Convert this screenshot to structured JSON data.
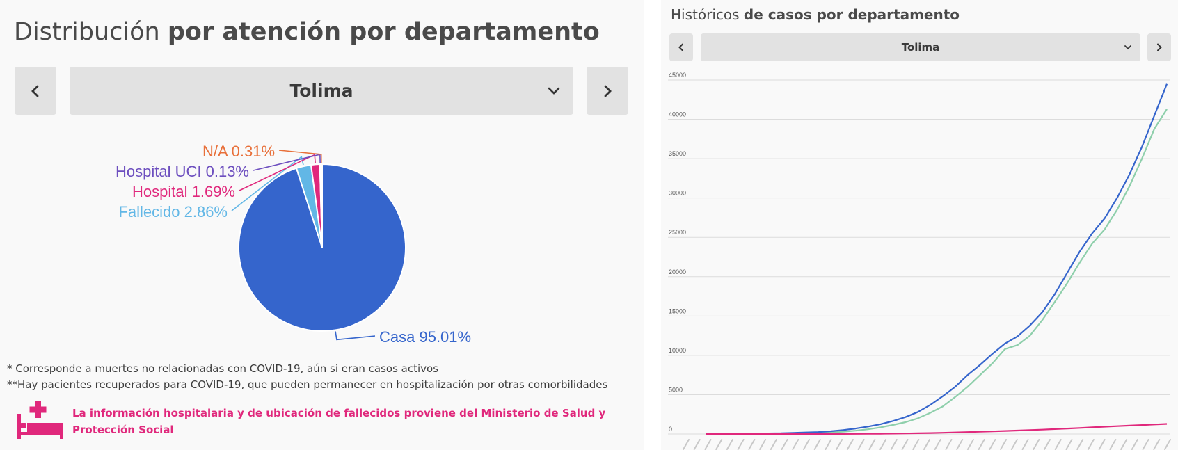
{
  "left": {
    "title_light": "Distribución ",
    "title_bold": "por atención por departamento",
    "department": "Tolima",
    "footnotes": [
      "* Corresponde a muertes no relacionadas con COVID-19, aún si eran casos activos",
      "**Hay pacientes recuperados para COVID-19, que pueden permanecer en hospitalización por otras comorbilidades"
    ],
    "hospital_note": "La información hospitalaria y de ubicación de fallecidos proviene del Ministerio de Salud y Protección Social",
    "icons": {
      "prev": "chevron-left-icon",
      "next": "chevron-right-icon",
      "dropdown": "chevron-down-icon",
      "hospital": "hospital-bed-icon"
    }
  },
  "right": {
    "title_light": "Históricos ",
    "title_bold": "de casos por departamento",
    "department": "Tolima",
    "icons": {
      "prev": "chevron-left-icon",
      "next": "chevron-right-icon",
      "dropdown": "chevron-down-icon"
    }
  },
  "colors": {
    "casa": "#3565cc",
    "fallecido": "#62b7e6",
    "hospital": "#e0287c",
    "uci": "#6d4fbf",
    "na": "#e8703a",
    "line_total": "#3565cc",
    "line_recovered": "#8ecfab",
    "line_deaths": "#e0287c",
    "accent": "#e0287c"
  },
  "chart_data": [
    {
      "type": "pie",
      "categories": [
        "Casa",
        "Fallecido",
        "Hospital",
        "Hospital UCI",
        "N/A"
      ],
      "values": [
        95.01,
        2.86,
        1.69,
        0.13,
        0.31
      ],
      "labels": [
        "Casa 95.01%",
        "Fallecido 2.86%",
        "Hospital 1.69%",
        "Hospital UCI 0.13%",
        "N/A 0.31%"
      ]
    },
    {
      "type": "line",
      "ylim": [
        0,
        45000
      ],
      "yticks": [
        "0",
        "5000",
        "10000",
        "15000",
        "20000",
        "25000",
        "30000",
        "35000",
        "40000",
        "45000"
      ],
      "x_tick_count": 45,
      "series": [
        {
          "values": [
            0,
            0,
            0,
            0,
            50,
            80,
            100,
            150,
            200,
            250,
            350,
            500,
            700,
            950,
            1250,
            1650,
            2150,
            2800,
            3700,
            4800,
            6000,
            7500,
            8800,
            10200,
            11500,
            12400,
            13800,
            15500,
            17800,
            20500,
            23200,
            25500,
            27400,
            30000,
            33000,
            36500,
            40500,
            44500
          ]
        },
        {
          "values": [
            0,
            0,
            0,
            0,
            20,
            40,
            60,
            80,
            110,
            150,
            200,
            300,
            420,
            600,
            850,
            1150,
            1500,
            2000,
            2700,
            3500,
            4700,
            6000,
            7500,
            9000,
            10800,
            11300,
            12500,
            14500,
            16800,
            19200,
            21800,
            24200,
            26000,
            28500,
            31500,
            35000,
            38800,
            41300
          ]
        },
        {
          "values": [
            0,
            0,
            0,
            0,
            0,
            0,
            0,
            0,
            2,
            5,
            8,
            12,
            18,
            25,
            35,
            50,
            70,
            95,
            125,
            160,
            200,
            245,
            290,
            340,
            390,
            440,
            500,
            560,
            630,
            700,
            770,
            850,
            930,
            1000,
            1070,
            1140,
            1210,
            1280
          ]
        }
      ]
    }
  ]
}
